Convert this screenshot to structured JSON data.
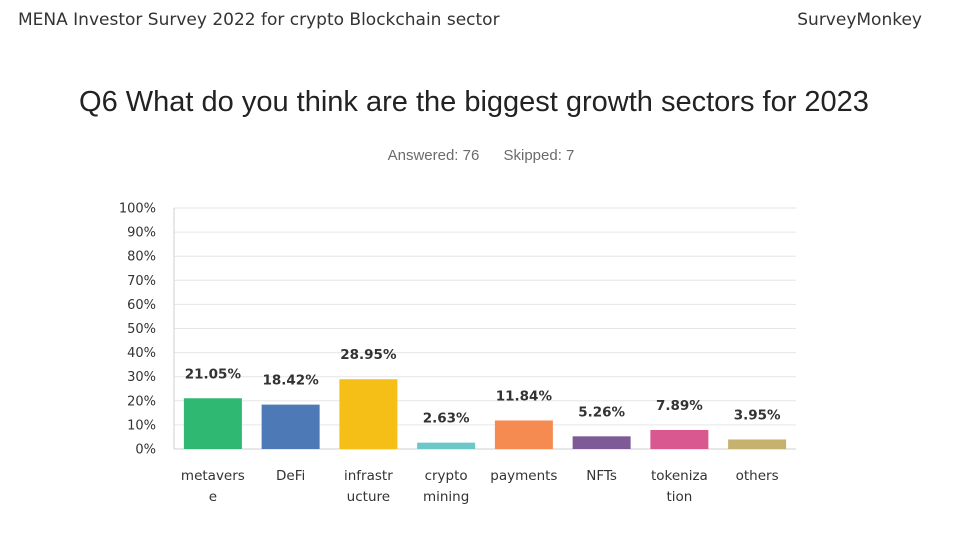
{
  "header": {
    "survey_title": "MENA Investor Survey 2022 for crypto Blockchain sector",
    "brand": "SurveyMonkey"
  },
  "question": {
    "title": "Q6 What do you think are the biggest growth sectors for 2023",
    "answered": "Answered: 76",
    "skipped": "Skipped: 7"
  },
  "chart_data": {
    "type": "bar",
    "categories": [
      [
        "metavers",
        "e"
      ],
      [
        "DeFi"
      ],
      [
        "infrastr",
        "ucture"
      ],
      [
        "crypto",
        "mining"
      ],
      [
        "payments"
      ],
      [
        "NFTs"
      ],
      [
        "tokeniza",
        "tion"
      ],
      [
        "others"
      ]
    ],
    "values": [
      21.05,
      18.42,
      28.95,
      2.63,
      11.84,
      5.26,
      7.89,
      3.95
    ],
    "value_labels": [
      "21.05%",
      "18.42%",
      "28.95%",
      "2.63%",
      "11.84%",
      "5.26%",
      "7.89%",
      "3.95%"
    ],
    "colors": [
      "#2eb872",
      "#4e79b7",
      "#f5bf18",
      "#6cc8c8",
      "#f68b52",
      "#7e5b97",
      "#d8588f",
      "#c6b16f"
    ],
    "ylim": [
      0,
      100
    ],
    "yticks": [
      "0%",
      "10%",
      "20%",
      "30%",
      "40%",
      "50%",
      "60%",
      "70%",
      "80%",
      "90%",
      "100%"
    ],
    "grid": true,
    "title": "Q6 What do you think are the biggest growth sectors for 2023",
    "xlabel": "",
    "ylabel": ""
  }
}
